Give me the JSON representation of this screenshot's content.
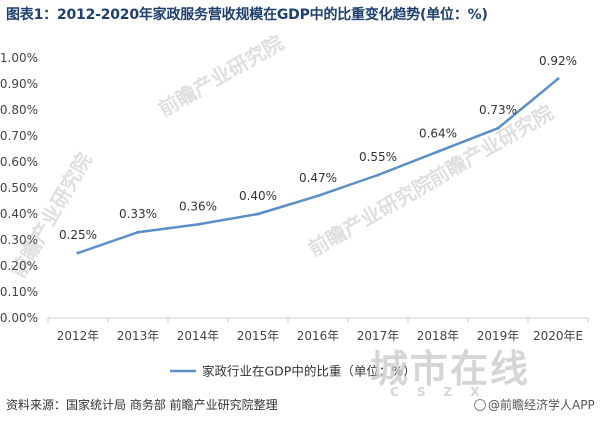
{
  "title": "图表1：2012-2020年家政服务营收规模在GDP中的比重变化趋势(单位：%)",
  "source": "资料来源：国家统计局 商务部 前瞻产业研究院整理",
  "brand": "@前瞻经济学人APP",
  "watermark": "前瞻产业研究院",
  "watermark_big": "城市在线",
  "watermark_letters": "CSZX",
  "colors": {
    "line": "#5b8fc7",
    "title": "#1f3f6e",
    "axis": "#cccccc"
  },
  "chart_data": {
    "type": "line",
    "categories": [
      "2012年",
      "2013年",
      "2014年",
      "2015年",
      "2016年",
      "2017年",
      "2018年",
      "2019年",
      "2020年E"
    ],
    "series": [
      {
        "name": "家政行业在GDP中的比重（单位：%）",
        "values": [
          0.25,
          0.33,
          0.36,
          0.4,
          0.47,
          0.55,
          0.64,
          0.73,
          0.92
        ]
      }
    ],
    "data_labels": [
      "0.25%",
      "0.33%",
      "0.36%",
      "0.40%",
      "0.47%",
      "0.55%",
      "0.64%",
      "0.73%",
      "0.92%"
    ],
    "y_ticks": [
      "0.00%",
      "0.10%",
      "0.20%",
      "0.30%",
      "0.40%",
      "0.50%",
      "0.60%",
      "0.70%",
      "0.80%",
      "0.90%",
      "1.00%"
    ],
    "ylim": [
      0,
      1.0
    ],
    "legend_position": "bottom",
    "grid": false
  }
}
